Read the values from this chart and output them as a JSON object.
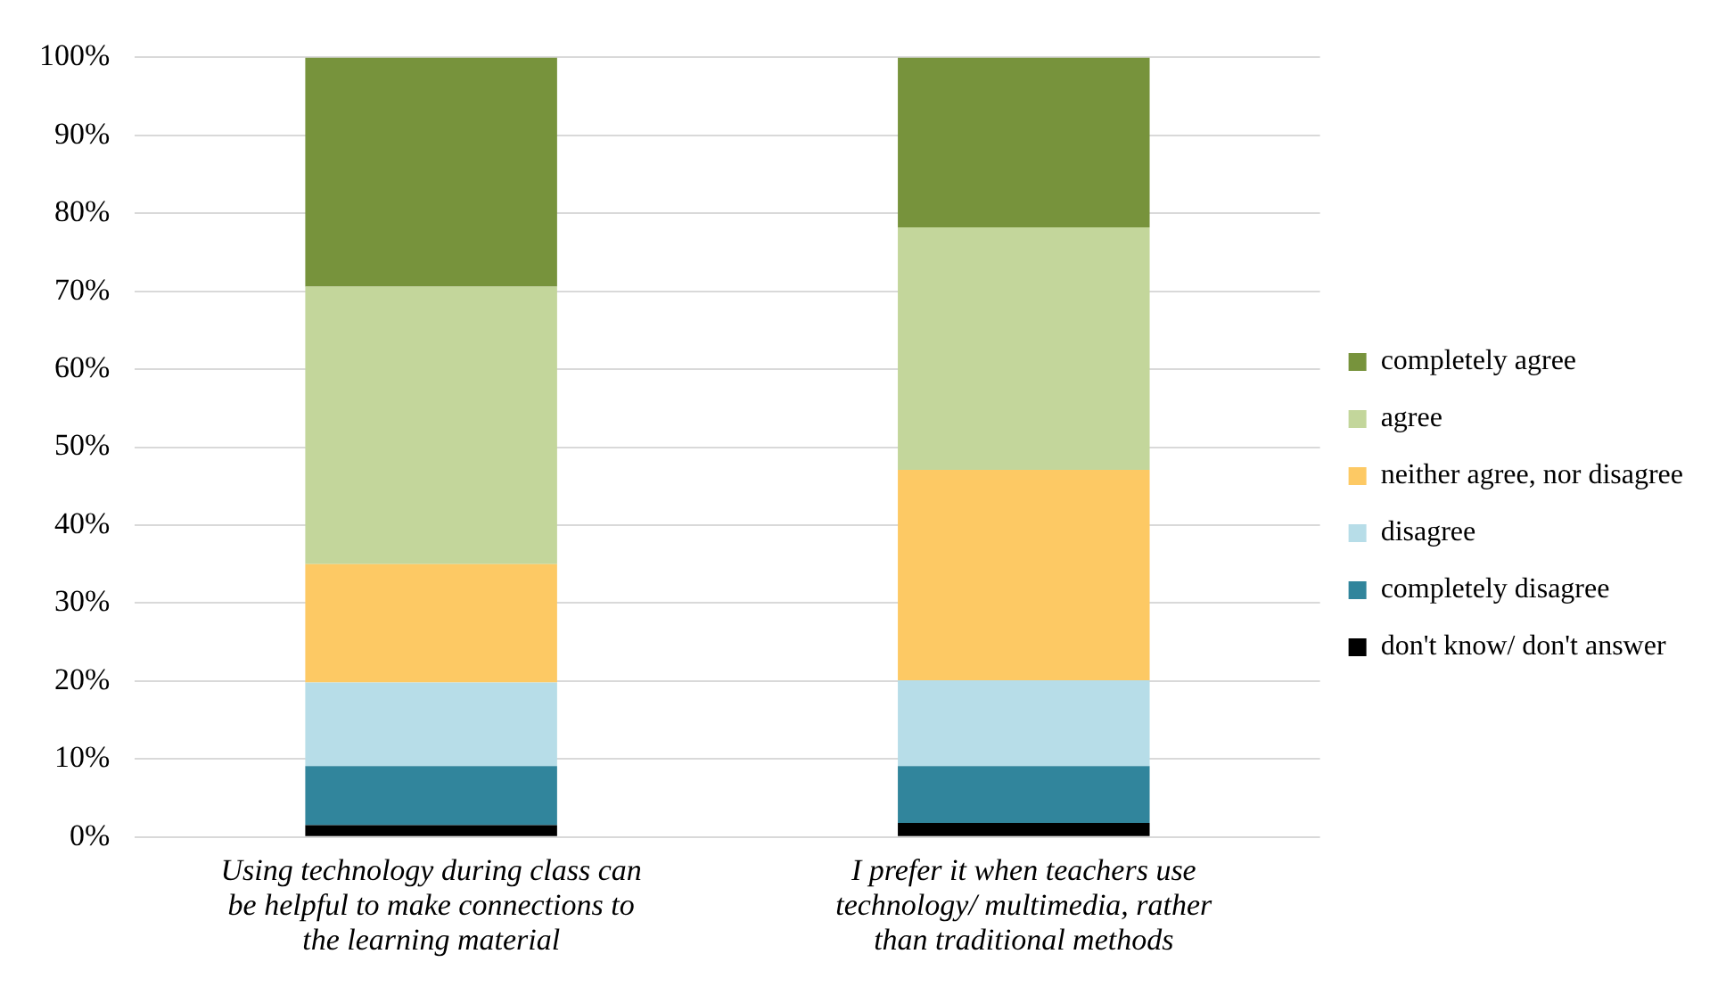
{
  "chart_data": {
    "type": "bar",
    "stacked": true,
    "categories": [
      "Using technology during class can be helpful to make connections to the learning material",
      "I prefer it when teachers use technology/ multimedia, rather than traditional methods"
    ],
    "series": [
      {
        "name": "don't know/ don't answer",
        "color": "#000000",
        "values": [
          1.5,
          1.8
        ]
      },
      {
        "name": "completely disagree",
        "color": "#31859c",
        "values": [
          7.6,
          7.3
        ]
      },
      {
        "name": "disagree",
        "color": "#b7dde8",
        "values": [
          10.7,
          11.0
        ]
      },
      {
        "name": "neither agree, nor disagree",
        "color": "#fdc964",
        "values": [
          15.2,
          27.0
        ]
      },
      {
        "name": "agree",
        "color": "#c3d69b",
        "values": [
          35.6,
          31.1
        ]
      },
      {
        "name": "completely agree",
        "color": "#77933c",
        "values": [
          29.4,
          21.8
        ]
      }
    ],
    "ylim": [
      0,
      100
    ],
    "yticks": [
      {
        "value": 0,
        "label": "0%"
      },
      {
        "value": 10,
        "label": "10%"
      },
      {
        "value": 20,
        "label": "20%"
      },
      {
        "value": 30,
        "label": "30%"
      },
      {
        "value": 40,
        "label": "40%"
      },
      {
        "value": 50,
        "label": "50%"
      },
      {
        "value": 60,
        "label": "60%"
      },
      {
        "value": 70,
        "label": "70%"
      },
      {
        "value": 80,
        "label": "80%"
      },
      {
        "value": 90,
        "label": "90%"
      },
      {
        "value": 100,
        "label": "100%"
      }
    ],
    "grid": "y",
    "legend": "right"
  }
}
